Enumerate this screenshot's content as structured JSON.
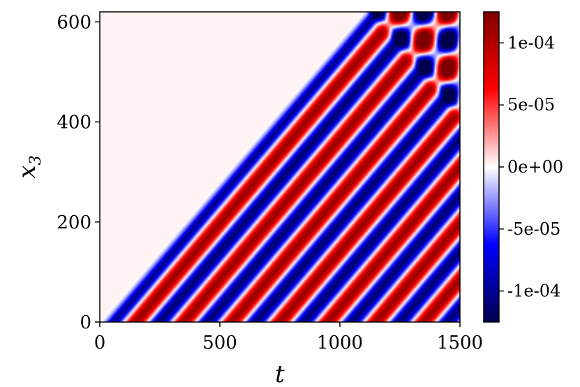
{
  "chart_data": {
    "type": "heatmap",
    "title": "",
    "xlabel": "t",
    "ylabel_main": "x",
    "ylabel_sub": "3",
    "xlim": [
      0,
      1500
    ],
    "ylim": [
      0,
      620
    ],
    "x_ticks": [
      {
        "value": 0,
        "label": "0"
      },
      {
        "value": 500,
        "label": "500"
      },
      {
        "value": 1000,
        "label": "1000"
      },
      {
        "value": 1500,
        "label": "1500"
      }
    ],
    "y_ticks": [
      {
        "value": 0,
        "label": "0"
      },
      {
        "value": 200,
        "label": "200"
      },
      {
        "value": 400,
        "label": "400"
      },
      {
        "value": 600,
        "label": "600"
      }
    ],
    "colorbar": {
      "colormap": "seismic",
      "vmin": -0.000125,
      "vmax": 0.000125,
      "ticks": [
        {
          "value": 0.0001,
          "label": "1e-04"
        },
        {
          "value": 5e-05,
          "label": "5e-05"
        },
        {
          "value": 0,
          "label": "0e+00"
        },
        {
          "value": -5e-05,
          "label": "-5e-05"
        },
        {
          "value": -0.0001,
          "label": "-1e-04"
        }
      ]
    },
    "field": {
      "front_speed": 0.564,
      "stripe_period_t": 200,
      "amplitude": 0.00011,
      "front_value": 3e-06,
      "reflection_start_t": 1090,
      "boundary_x3": 620
    }
  }
}
